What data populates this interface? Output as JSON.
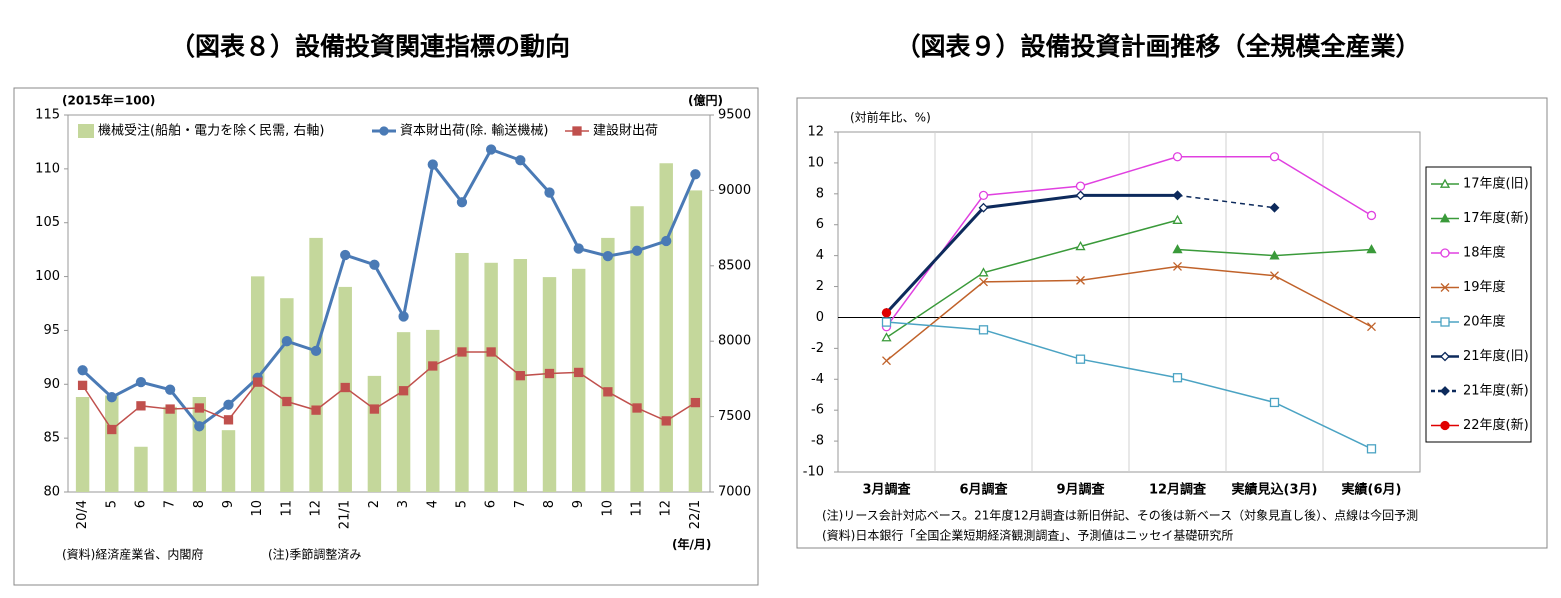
{
  "chart_data": [
    {
      "type": "combo",
      "title": "（図表８）設備投資関連指標の動向",
      "y_label": "(2015年＝100)",
      "y2_label": "(億円)",
      "x_label": "(年/月)",
      "source": "(資料)経済産業省、内閣府",
      "note": "(注)季節調整済み",
      "categories": [
        "20/4",
        "5",
        "6",
        "7",
        "8",
        "9",
        "10",
        "11",
        "12",
        "21/1",
        "2",
        "3",
        "4",
        "5",
        "6",
        "7",
        "8",
        "9",
        "10",
        "11",
        "12",
        "22/1"
      ],
      "ylim": [
        80,
        115
      ],
      "yticks": [
        80,
        85,
        90,
        95,
        100,
        105,
        110,
        115
      ],
      "y2lim": [
        7000,
        9500
      ],
      "y2ticks": [
        7000,
        7500,
        8000,
        8500,
        9000,
        9500
      ],
      "series": [
        {
          "name": "機械受注(船舶・電力を除く民需, 右軸)",
          "kind": "bar",
          "axis": "y2",
          "color": "#c4d79b",
          "values": [
            7630,
            7640,
            7300,
            7565,
            7630,
            7410,
            8430,
            8285,
            8685,
            8360,
            7770,
            8060,
            8075,
            8585,
            8520,
            8545,
            8425,
            8480,
            8685,
            8895,
            9180,
            9000
          ]
        },
        {
          "name": "資本財出荷(除. 輸送機械)",
          "kind": "line",
          "marker": "circle",
          "color": "#4a7ab5",
          "values": [
            91.3,
            88.8,
            90.2,
            89.5,
            86.1,
            88.1,
            90.6,
            94.0,
            93.1,
            102.0,
            101.1,
            96.3,
            110.4,
            106.9,
            111.8,
            110.8,
            107.8,
            102.6,
            101.9,
            102.4,
            103.3,
            109.5
          ]
        },
        {
          "name": "建設財出荷",
          "kind": "line",
          "marker": "square",
          "color": "#c0504d",
          "values": [
            89.9,
            85.8,
            88.0,
            87.7,
            87.8,
            86.7,
            90.2,
            88.4,
            87.6,
            89.7,
            87.7,
            89.4,
            91.7,
            93.0,
            93.0,
            90.8,
            91.0,
            91.1,
            89.3,
            87.8,
            86.6,
            88.3
          ]
        }
      ]
    },
    {
      "type": "line",
      "title": "（図表９）設備投資計画推移（全規模全産業）",
      "y_label": "(対前年比、%)",
      "note": "(注)リース会計対応ベース。21年度12月調査は新旧併記、その後は新ベース（対象見直し後）、点線は今回予測",
      "source": "(資料)日本銀行「全国企業短期経済観測調査」、予測値はニッセイ基礎研究所",
      "categories": [
        "3月調査",
        "6月調査",
        "9月調査",
        "12月調査",
        "実績見込(3月)",
        "実績(6月)"
      ],
      "ylim": [
        -10,
        12
      ],
      "yticks": [
        -10,
        -8,
        -6,
        -4,
        -2,
        0,
        2,
        4,
        6,
        8,
        10,
        12
      ],
      "series": [
        {
          "name": "17年度(旧)",
          "color": "#3a9a3a",
          "marker": "triangle",
          "filled": false,
          "values": [
            -1.3,
            2.9,
            4.6,
            6.3,
            null,
            null
          ]
        },
        {
          "name": "17年度(新)",
          "color": "#3a9a3a",
          "marker": "triangle",
          "filled": true,
          "values": [
            null,
            null,
            null,
            4.4,
            4.0,
            4.4
          ]
        },
        {
          "name": "18年度",
          "color": "#e040e0",
          "marker": "circle",
          "filled": false,
          "values": [
            -0.6,
            7.9,
            8.5,
            10.4,
            10.4,
            6.6
          ]
        },
        {
          "name": "19年度",
          "color": "#c0622a",
          "marker": "x",
          "filled": false,
          "values": [
            -2.8,
            2.3,
            2.4,
            3.3,
            2.7,
            -0.6
          ]
        },
        {
          "name": "20年度",
          "color": "#4ba3c3",
          "marker": "square",
          "filled": false,
          "values": [
            -0.3,
            -0.8,
            -2.7,
            -3.9,
            -5.5,
            -8.5
          ]
        },
        {
          "name": "21年度(旧)",
          "color": "#0d2a5c",
          "marker": "diamond",
          "filled": false,
          "bold": true,
          "values": [
            0.3,
            7.1,
            7.9,
            7.9,
            null,
            null
          ]
        },
        {
          "name": "21年度(新)",
          "color": "#0d2a5c",
          "marker": "diamond",
          "filled": true,
          "dash": true,
          "values": [
            null,
            null,
            null,
            7.9,
            7.1,
            null
          ]
        },
        {
          "name": "22年度(新)",
          "color": "#e00000",
          "marker": "circle",
          "filled": true,
          "values": [
            0.3,
            null,
            null,
            null,
            null,
            null
          ]
        }
      ]
    }
  ]
}
